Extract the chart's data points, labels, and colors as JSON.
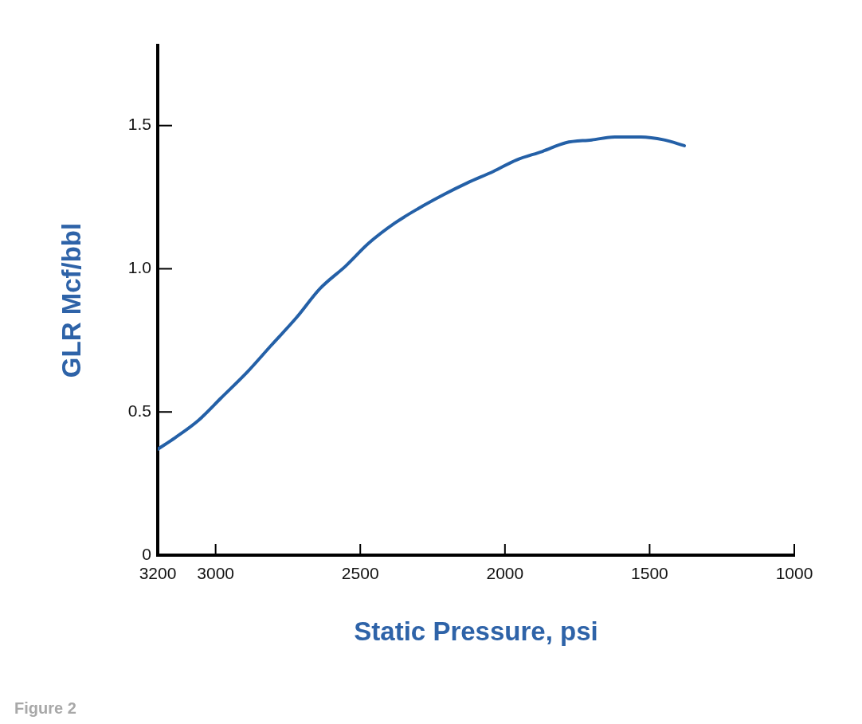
{
  "chart_data": {
    "type": "line",
    "xlabel": "Static Pressure, psi",
    "ylabel": "GLR Mcf/bbl",
    "annotations": [
      "Figure 2"
    ],
    "xlim": [
      3200,
      1000
    ],
    "xticks": [
      3200,
      3000,
      2500,
      2000,
      1500,
      1000
    ],
    "ylim": [
      0,
      1.78
    ],
    "yticks": [
      0,
      0.5,
      {
        "value": 1,
        "label": "1.0"
      },
      1.5
    ],
    "grid": false,
    "legend": false,
    "marker": "none",
    "line_style": "solid",
    "series": [
      {
        "color": "#2460a7",
        "x": [
          3200,
          3140,
          3060,
          2980,
          2890,
          2810,
          2720,
          2640,
          2550,
          2470,
          2380,
          2300,
          2210,
          2130,
          2040,
          1960,
          1870,
          1790,
          1700,
          1620,
          1530,
          1450,
          1380
        ],
        "values": [
          0.37,
          0.41,
          0.47,
          0.55,
          0.64,
          0.73,
          0.83,
          0.93,
          1.01,
          1.09,
          1.16,
          1.21,
          1.26,
          1.3,
          1.34,
          1.38,
          1.41,
          1.44,
          1.45,
          1.46,
          1.46,
          1.45,
          1.43
        ]
      }
    ]
  }
}
